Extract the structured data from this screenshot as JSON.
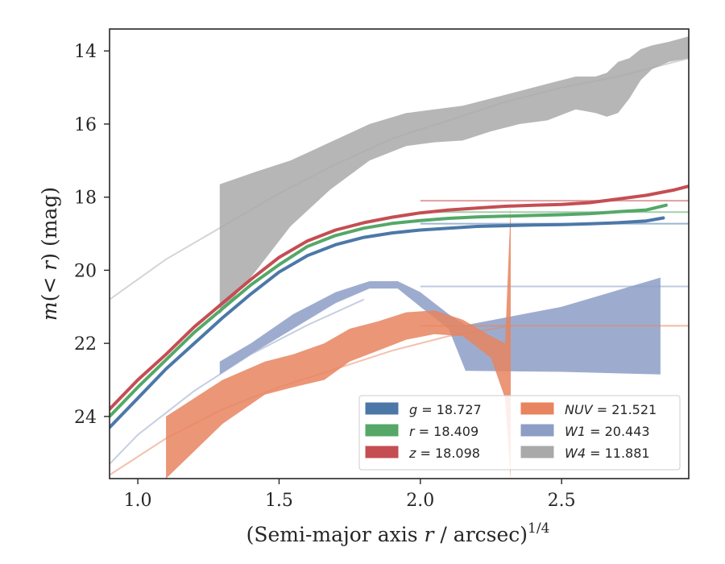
{
  "chart_data": {
    "type": "line",
    "xlabel": "(Semi-major axis r / arcsec)",
    "xlabel_parts": {
      "before": "(Semi-major axis ",
      "var": "r",
      "after": " / arcsec)",
      "sup": "1/4"
    },
    "ylabel_parts": {
      "m": "m",
      "open": "(",
      "lt": "< ",
      "r": "r",
      "close": ")",
      "unit": " (mag)"
    },
    "ylabel": "m(< r) (mag)",
    "xlim": [
      0.9,
      2.95
    ],
    "ylim": [
      25.7,
      13.4
    ],
    "y_inverted": true,
    "xticks": [
      1.0,
      1.5,
      2.0,
      2.5
    ],
    "xtick_labels": [
      "1.0",
      "1.5",
      "2.0",
      "2.5"
    ],
    "yticks": [
      14,
      16,
      18,
      20,
      22,
      24
    ],
    "ytick_labels": [
      "14",
      "16",
      "18",
      "20",
      "22",
      "24"
    ],
    "grid": false,
    "legend_position": "lower-right",
    "legend": [
      {
        "band": "g",
        "value": "18.727",
        "color": "#4c78a8"
      },
      {
        "band": "r",
        "value": "18.409",
        "color": "#55a868"
      },
      {
        "band": "z",
        "value": "18.098",
        "color": "#c44e52"
      },
      {
        "band": "NUV",
        "value": "21.521",
        "color": "#e8845f"
      },
      {
        "band": "W1",
        "value": "20.443",
        "color": "#8c9dc6"
      },
      {
        "band": "W4",
        "value": "11.881",
        "color": "#a9a9a9"
      }
    ],
    "series": [
      {
        "name": "g",
        "kind": "line",
        "color": "#4c78a8",
        "asymptote": 18.727,
        "x": [
          0.9,
          1.0,
          1.1,
          1.2,
          1.3,
          1.4,
          1.5,
          1.6,
          1.7,
          1.8,
          1.9,
          2.0,
          2.1,
          2.2,
          2.3,
          2.4,
          2.5,
          2.6,
          2.7,
          2.8,
          2.86
        ],
        "y": [
          24.3,
          23.5,
          22.7,
          22.0,
          21.3,
          20.65,
          20.05,
          19.6,
          19.3,
          19.1,
          18.98,
          18.9,
          18.85,
          18.8,
          18.78,
          18.76,
          18.75,
          18.73,
          18.7,
          18.65,
          18.57
        ]
      },
      {
        "name": "r",
        "kind": "line",
        "color": "#55a868",
        "asymptote": 18.409,
        "x": [
          0.9,
          1.0,
          1.1,
          1.2,
          1.3,
          1.4,
          1.5,
          1.6,
          1.7,
          1.8,
          1.9,
          2.0,
          2.1,
          2.2,
          2.3,
          2.4,
          2.5,
          2.6,
          2.7,
          2.8,
          2.87
        ],
        "y": [
          24.0,
          23.2,
          22.45,
          21.7,
          21.05,
          20.4,
          19.85,
          19.35,
          19.05,
          18.85,
          18.72,
          18.64,
          18.58,
          18.54,
          18.52,
          18.5,
          18.48,
          18.45,
          18.4,
          18.35,
          18.22
        ]
      },
      {
        "name": "z",
        "kind": "line",
        "color": "#c44e52",
        "asymptote": 18.098,
        "x": [
          0.9,
          1.0,
          1.1,
          1.2,
          1.3,
          1.4,
          1.5,
          1.6,
          1.7,
          1.8,
          1.9,
          2.0,
          2.1,
          2.2,
          2.3,
          2.4,
          2.5,
          2.6,
          2.7,
          2.8,
          2.9,
          2.95
        ],
        "y": [
          23.8,
          23.0,
          22.3,
          21.55,
          20.9,
          20.25,
          19.65,
          19.2,
          18.9,
          18.7,
          18.55,
          18.43,
          18.35,
          18.3,
          18.25,
          18.22,
          18.2,
          18.15,
          18.05,
          17.95,
          17.8,
          17.7
        ]
      },
      {
        "name": "NUV",
        "kind": "band",
        "color": "#e8845f",
        "asymptote": 21.521,
        "model_x": [
          0.9,
          1.1,
          1.3,
          1.5,
          1.7,
          1.9,
          2.1,
          2.3
        ],
        "model_y": [
          25.6,
          24.6,
          23.8,
          23.2,
          22.7,
          22.2,
          21.8,
          21.55
        ],
        "x": [
          1.1,
          1.3,
          1.45,
          1.55,
          1.66,
          1.75,
          1.85,
          1.95,
          2.05,
          2.15,
          2.25,
          2.3,
          2.32
        ],
        "y_upper": [
          24.0,
          23.0,
          22.5,
          22.3,
          22.0,
          21.6,
          21.4,
          21.15,
          21.1,
          21.35,
          21.8,
          22.0,
          18.2
        ],
        "y_lower": [
          25.7,
          24.2,
          23.4,
          23.2,
          23.0,
          22.5,
          22.2,
          21.9,
          21.75,
          21.8,
          22.4,
          23.5,
          25.7
        ]
      },
      {
        "name": "W1",
        "kind": "band",
        "color": "#8c9dc6",
        "asymptote": 20.443,
        "model_x": [
          0.9,
          1.0,
          1.2,
          1.4,
          1.6,
          1.8
        ],
        "model_y": [
          25.3,
          24.5,
          23.3,
          22.3,
          21.5,
          20.8
        ],
        "x": [
          1.29,
          1.4,
          1.55,
          1.7,
          1.82,
          1.92,
          2.0,
          2.1,
          2.16,
          2.5,
          2.85
        ],
        "y_upper": [
          22.5,
          22.0,
          21.2,
          20.6,
          20.3,
          20.3,
          20.6,
          21.2,
          21.5,
          21.0,
          20.2
        ],
        "y_lower": [
          22.85,
          22.3,
          21.6,
          20.9,
          20.5,
          20.5,
          21.0,
          21.6,
          22.75,
          22.78,
          22.85
        ]
      },
      {
        "name": "W4",
        "kind": "band",
        "color": "#a9a9a9",
        "asymptote": null,
        "model_x": [
          0.9,
          1.1,
          1.3,
          1.5,
          1.7,
          1.9,
          2.1,
          2.3,
          2.5,
          2.7,
          2.95
        ],
        "model_y": [
          20.8,
          19.7,
          18.8,
          17.9,
          17.1,
          16.4,
          15.9,
          15.4,
          15.0,
          14.7,
          14.2
        ],
        "x": [
          1.29,
          1.42,
          1.54,
          1.68,
          1.82,
          1.95,
          2.05,
          2.15,
          2.25,
          2.35,
          2.45,
          2.55,
          2.62,
          2.66,
          2.7,
          2.74,
          2.78,
          2.82,
          2.88,
          2.95
        ],
        "y_upper": [
          17.65,
          17.3,
          17.0,
          16.5,
          16.0,
          15.7,
          15.6,
          15.5,
          15.3,
          15.1,
          14.9,
          14.7,
          14.7,
          14.6,
          14.3,
          14.2,
          13.95,
          13.85,
          13.75,
          13.6
        ],
        "y_lower": [
          21.2,
          20.0,
          18.8,
          17.8,
          17.0,
          16.6,
          16.5,
          16.45,
          16.2,
          16.0,
          15.9,
          15.6,
          15.7,
          15.8,
          15.7,
          15.3,
          14.8,
          14.5,
          14.3,
          14.2
        ]
      }
    ]
  }
}
